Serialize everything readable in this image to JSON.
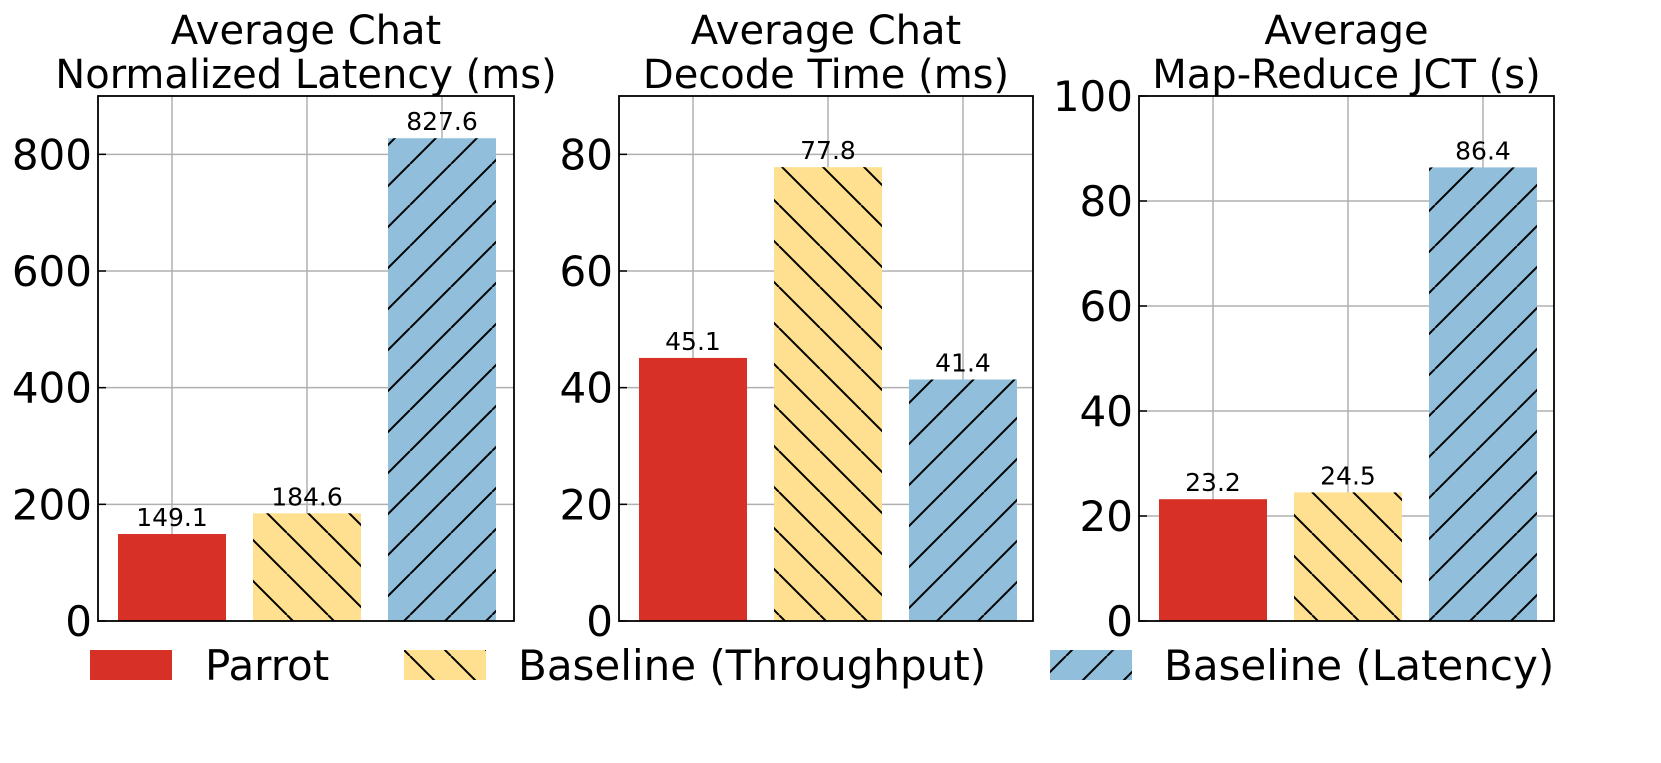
{
  "colors": {
    "parrot": "#d73027",
    "baseline_throughput": "#fee090",
    "baseline_latency": "#91bfdb",
    "grid": "#b0b0b0",
    "hatch": "#000000"
  },
  "legend": {
    "position": "bottom",
    "items": [
      {
        "label": "Parrot",
        "color": "#d73027",
        "hatch": "none"
      },
      {
        "label": "Baseline (Throughput)",
        "color": "#fee090",
        "hatch": "back-diagonal"
      },
      {
        "label": "Baseline (Latency)",
        "color": "#91bfdb",
        "hatch": "forward-diagonal"
      }
    ]
  },
  "chart_data": [
    {
      "type": "bar",
      "title_lines": [
        "Average Chat",
        "Normalized Latency (ms)"
      ],
      "series": [
        "Parrot",
        "Baseline (Throughput)",
        "Baseline (Latency)"
      ],
      "values": [
        149.1,
        184.6,
        827.6
      ],
      "value_labels": [
        "149.1",
        "184.6",
        "827.6"
      ],
      "ylim": [
        0,
        900
      ],
      "yticks": [
        0,
        200,
        400,
        600,
        800
      ],
      "ytick_labels": [
        "0",
        "200",
        "400",
        "600",
        "800"
      ],
      "grid": true
    },
    {
      "type": "bar",
      "title_lines": [
        "Average Chat",
        "Decode Time (ms)"
      ],
      "series": [
        "Parrot",
        "Baseline (Throughput)",
        "Baseline (Latency)"
      ],
      "values": [
        45.1,
        77.8,
        41.4
      ],
      "value_labels": [
        "45.1",
        "77.8",
        "41.4"
      ],
      "ylim": [
        0,
        90
      ],
      "yticks": [
        0,
        20,
        40,
        60,
        80
      ],
      "ytick_labels": [
        "0",
        "20",
        "40",
        "60",
        "80"
      ],
      "grid": true
    },
    {
      "type": "bar",
      "title_lines": [
        "Average",
        "Map-Reduce JCT (s)"
      ],
      "series": [
        "Parrot",
        "Baseline (Throughput)",
        "Baseline (Latency)"
      ],
      "values": [
        23.2,
        24.5,
        86.4
      ],
      "value_labels": [
        "23.2",
        "24.5",
        "86.4"
      ],
      "ylim": [
        0,
        100
      ],
      "yticks": [
        0,
        20,
        40,
        60,
        80,
        100
      ],
      "ytick_labels": [
        "0",
        "20",
        "40",
        "60",
        "80",
        "100"
      ],
      "grid": true
    }
  ]
}
